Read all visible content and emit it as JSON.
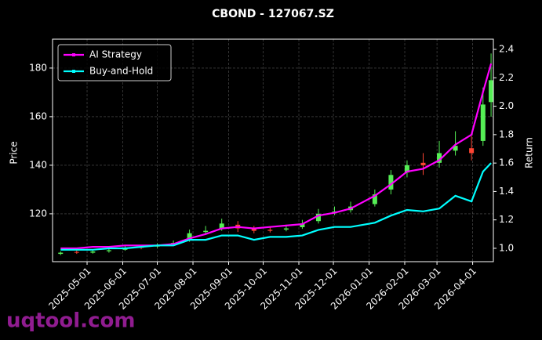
{
  "chart_data": {
    "type": "candlestick",
    "title": "CBOND - 127067.SZ",
    "ylabel": "Price",
    "y2label": "Return",
    "watermark": "uqtool.com",
    "x": [
      "2025-04-08",
      "2025-04-22",
      "2025-05-06",
      "2025-05-20",
      "2025-06-03",
      "2025-06-17",
      "2025-07-01",
      "2025-07-15",
      "2025-07-29",
      "2025-08-12",
      "2025-08-26",
      "2025-09-09",
      "2025-09-23",
      "2025-10-07",
      "2025-10-21",
      "2025-11-04",
      "2025-11-18",
      "2025-12-02",
      "2025-12-16",
      "2026-01-06",
      "2026-01-20",
      "2026-02-03",
      "2026-02-17",
      "2026-03-03",
      "2026-03-17",
      "2026-03-31",
      "2026-04-10",
      "2026-04-17"
    ],
    "open": [
      103.5,
      104.3,
      104,
      104.6,
      105.2,
      106.3,
      106.5,
      107.4,
      109,
      112.5,
      114,
      115.5,
      114,
      113.4,
      113.5,
      114.5,
      117,
      120.5,
      121.5,
      124,
      130,
      137,
      141,
      141,
      146,
      147,
      150,
      166
    ],
    "high": [
      104.5,
      105,
      105,
      105.6,
      106.8,
      107,
      107.8,
      109,
      113.5,
      115,
      118,
      117,
      115,
      114.5,
      115.5,
      117.5,
      122,
      123,
      125,
      130,
      138,
      142,
      145,
      150,
      154,
      152,
      172,
      186
    ],
    "low": [
      103,
      103.5,
      103.6,
      104,
      104.8,
      105.4,
      106,
      106.8,
      108.5,
      111.5,
      113,
      112.5,
      112,
      112.3,
      112.8,
      113.8,
      116,
      119.5,
      120.5,
      123,
      128,
      135,
      136,
      139,
      144,
      142,
      148,
      160
    ],
    "close": [
      104,
      104,
      104.5,
      105,
      106,
      106,
      107,
      108,
      112,
      113,
      116,
      114,
      113,
      113,
      114,
      116,
      120,
      121,
      123,
      128,
      136,
      140,
      140,
      145,
      148,
      145,
      165,
      175
    ],
    "up_color": "#55ee55",
    "down_color": "#ff4433",
    "series": [
      {
        "name": "AI Strategy",
        "color": "#ff00ff",
        "axis": "y2",
        "values": [
          1.0,
          1.0,
          1.01,
          1.01,
          1.02,
          1.02,
          1.02,
          1.03,
          1.07,
          1.1,
          1.14,
          1.15,
          1.14,
          1.15,
          1.16,
          1.17,
          1.23,
          1.25,
          1.28,
          1.37,
          1.45,
          1.54,
          1.56,
          1.62,
          1.73,
          1.8,
          2.1,
          2.3
        ]
      },
      {
        "name": "Buy-and-Hold",
        "color": "#00ffff",
        "axis": "y2",
        "values": [
          0.99,
          0.99,
          0.99,
          1.0,
          1.0,
          1.01,
          1.02,
          1.02,
          1.06,
          1.06,
          1.09,
          1.09,
          1.06,
          1.08,
          1.08,
          1.09,
          1.13,
          1.15,
          1.15,
          1.18,
          1.23,
          1.27,
          1.26,
          1.28,
          1.37,
          1.33,
          1.54,
          1.6
        ]
      }
    ],
    "xlim": [
      "2025-04-01",
      "2026-04-19"
    ],
    "xticks": [
      "2025-05-01",
      "2025-06-01",
      "2025-07-01",
      "2025-08-01",
      "2025-09-01",
      "2025-10-01",
      "2025-11-01",
      "2025-12-01",
      "2026-01-01",
      "2026-02-01",
      "2026-03-01",
      "2026-04-01"
    ],
    "ylim": [
      100.3,
      191.9
    ],
    "yticks": [
      120,
      140,
      160,
      180
    ],
    "y2lim": [
      0.906,
      2.472
    ],
    "y2ticks": [
      {
        "value": 1,
        "label": "1.0"
      },
      1.2,
      1.4,
      1.6,
      1.8,
      {
        "value": 2,
        "label": "2.0"
      },
      2.2,
      2.4
    ],
    "grid": true,
    "legend": "upper left"
  }
}
